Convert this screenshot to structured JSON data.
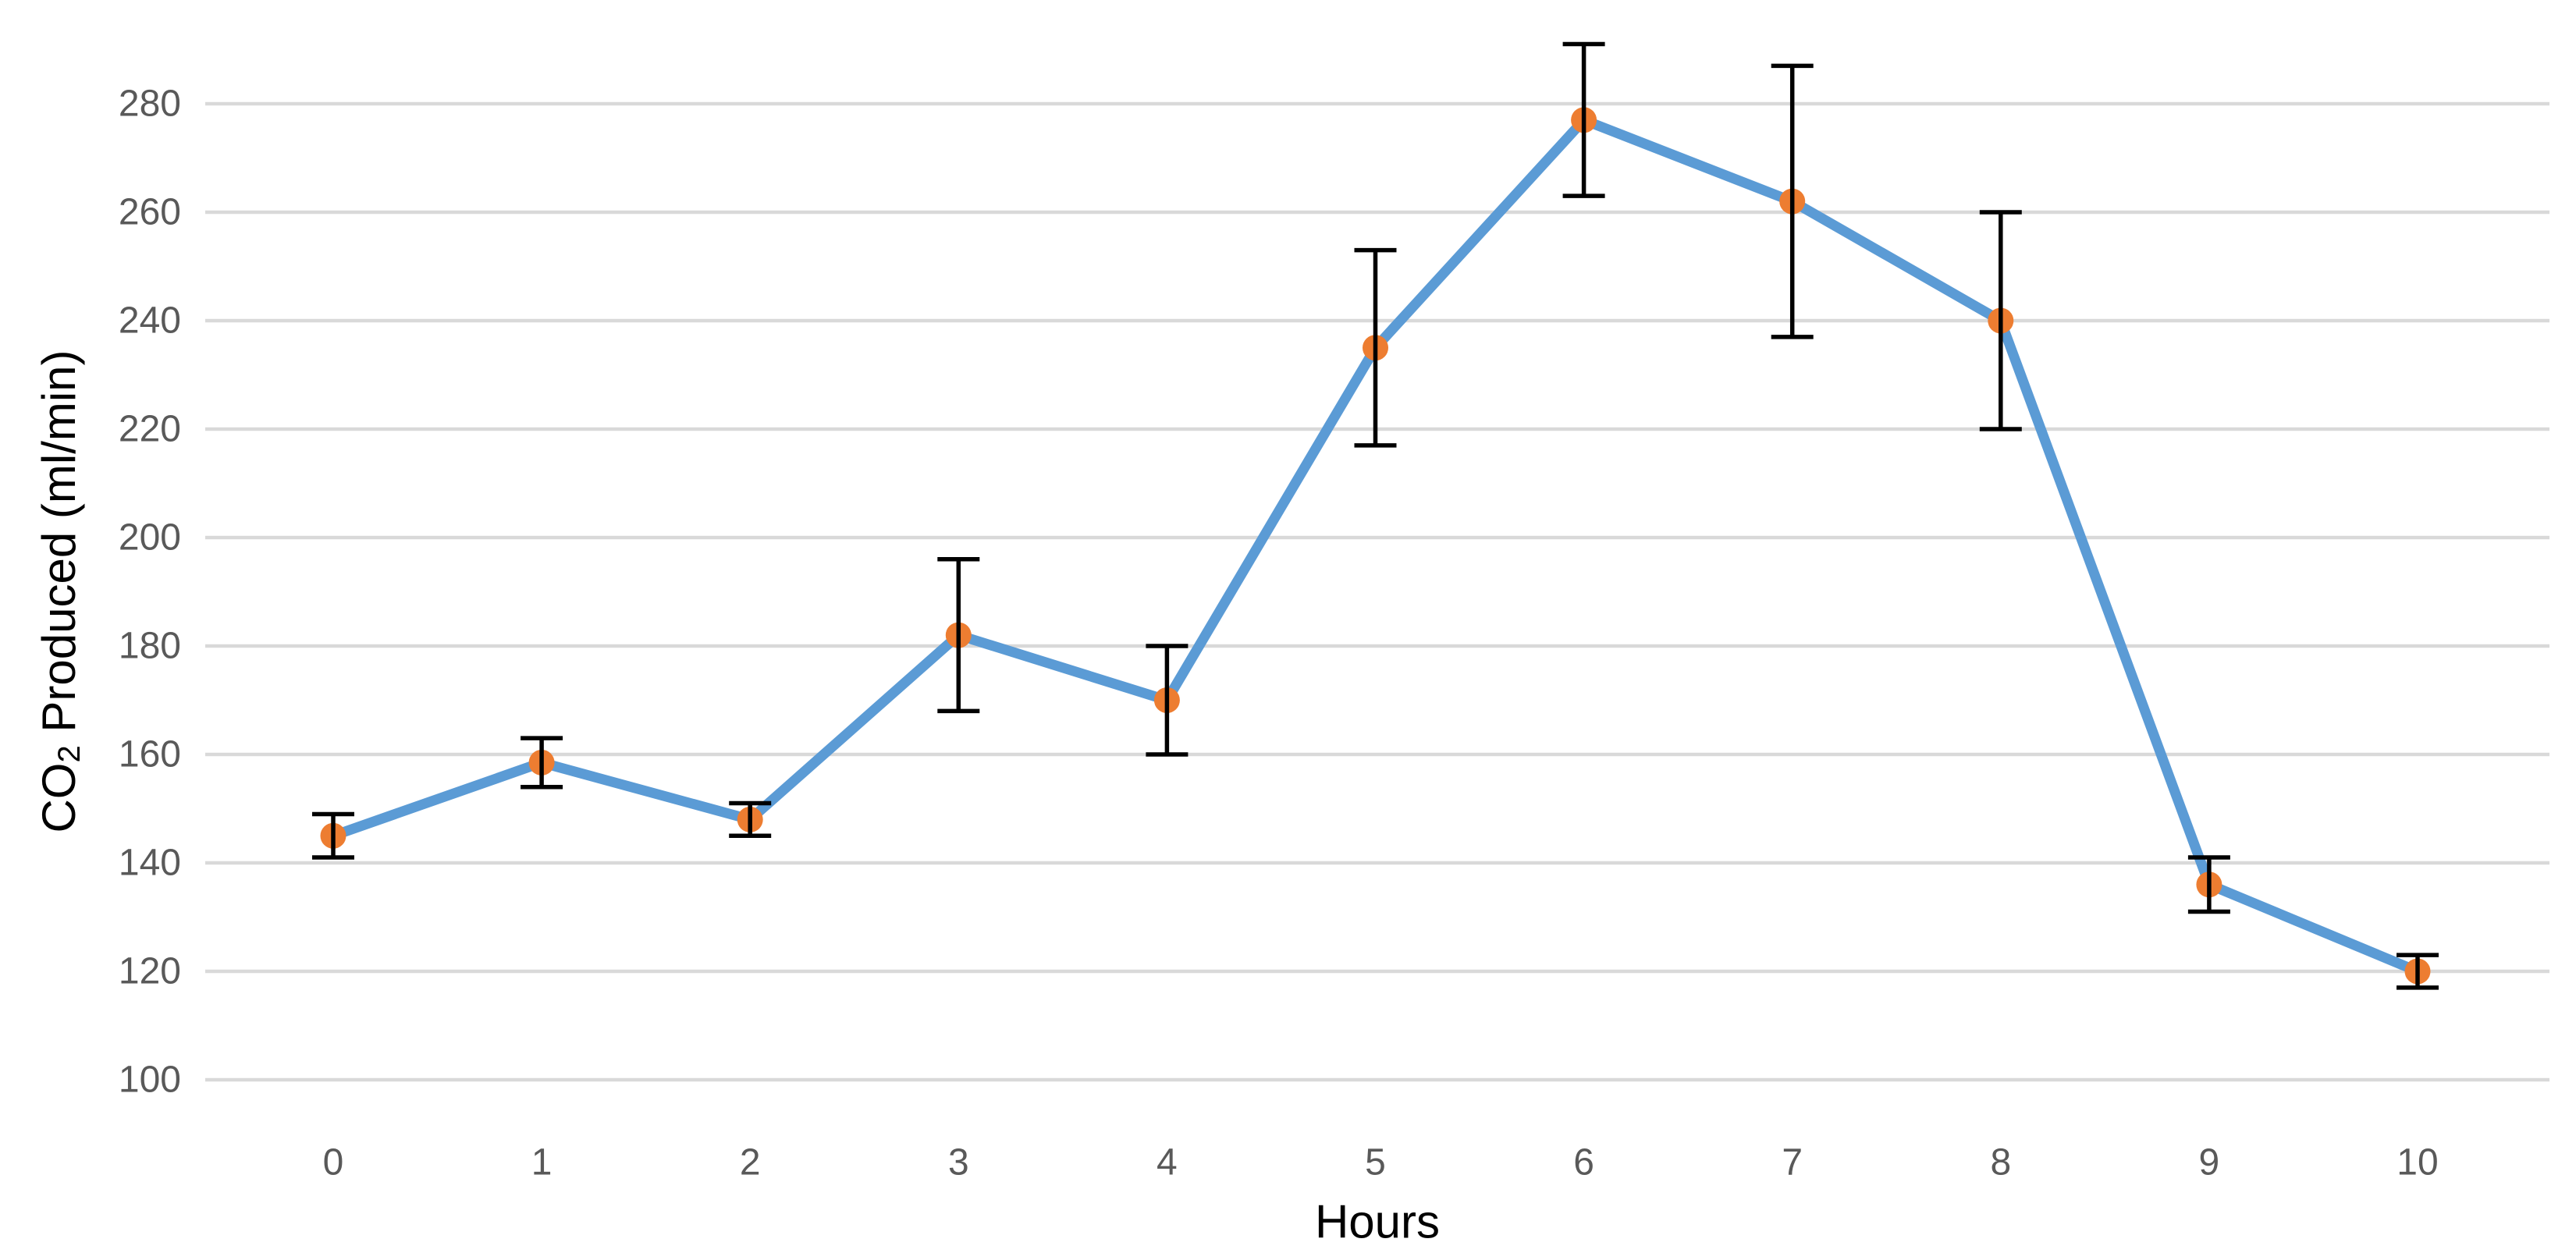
{
  "chart_data": {
    "type": "line",
    "title": "",
    "xlabel": "Hours",
    "ylabel": "CO₂ Produced (ml/min)",
    "ylabel_sub_parts": {
      "before": "CO",
      "sub": "2",
      "after": " Produced (ml/min)"
    },
    "x": [
      0,
      1,
      2,
      3,
      4,
      5,
      6,
      7,
      8,
      9,
      10
    ],
    "series": [
      {
        "name": "CO2 Produced (ml/min)",
        "values": [
          145,
          158.5,
          148,
          182,
          170,
          235,
          277,
          262,
          240,
          136,
          120
        ],
        "error_bars": [
          4,
          4.5,
          3,
          14,
          10,
          18,
          14,
          25,
          20,
          5,
          3
        ]
      }
    ],
    "y_ticks": [
      100,
      120,
      140,
      160,
      180,
      200,
      220,
      240,
      260,
      280
    ],
    "ylim": [
      100,
      280
    ],
    "grid": "horizontal-only",
    "legend": "none",
    "colors": {
      "line": "#5B9BD5",
      "marker": "#ED7D31",
      "error_bar": "#000000",
      "gridline": "#D9D9D9",
      "tick_text": "#595959",
      "axis_title_text": "#000000",
      "background": "#FFFFFF"
    }
  }
}
